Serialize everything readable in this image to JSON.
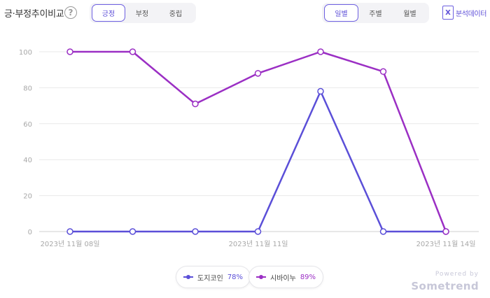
{
  "header": {
    "title": "긍·부정추이비교",
    "help_icon": "?"
  },
  "sentiment_tabs": [
    {
      "label": "긍정",
      "active": true
    },
    {
      "label": "부정",
      "active": false
    },
    {
      "label": "중립",
      "active": false
    }
  ],
  "period_tabs": [
    {
      "label": "일별",
      "active": true
    },
    {
      "label": "주별",
      "active": false
    },
    {
      "label": "월별",
      "active": false
    }
  ],
  "export": {
    "icon": "excel-icon",
    "icon_text": "X",
    "label": "분석데이터"
  },
  "chart_data": {
    "type": "line",
    "x_ticks": [
      "2023년 11월 08일",
      "2023년 11월 11일",
      "2023년 11월 14일"
    ],
    "ylim": [
      0,
      100
    ],
    "y_ticks": [
      0,
      20,
      40,
      60,
      80,
      100
    ],
    "grid": true,
    "legend_position": "bottom-center",
    "series": [
      {
        "name": "도지코인",
        "percent": "78%",
        "color": "#5b4fd8",
        "values": [
          0,
          0,
          0,
          0,
          78,
          0,
          0
        ]
      },
      {
        "name": "시바이누",
        "percent": "89%",
        "color": "#9b2fc4",
        "values": [
          100,
          100,
          71,
          88,
          100,
          89,
          0
        ]
      }
    ]
  },
  "legend": [
    {
      "name": "도지코인",
      "percent": "78%"
    },
    {
      "name": "시바이누",
      "percent": "89%"
    }
  ],
  "powered_by": {
    "line1": "Powered by",
    "line2": "Sometrend"
  }
}
